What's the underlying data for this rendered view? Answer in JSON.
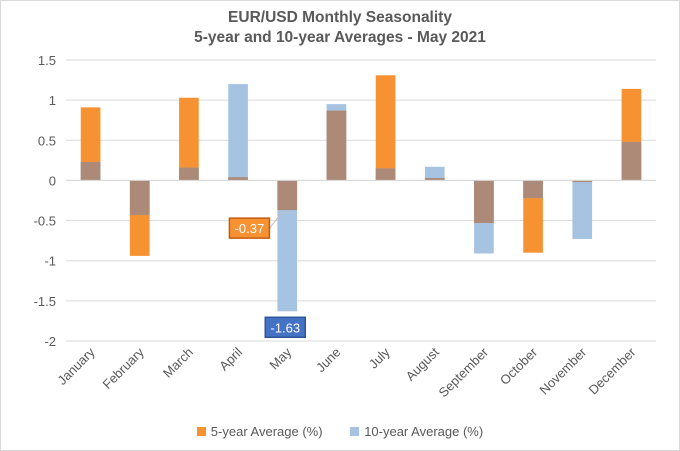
{
  "chart_data": {
    "type": "bar",
    "title": "EUR/USD Monthly Seasonality",
    "subtitle": "5-year and 10-year Averages - May 2021",
    "categories": [
      "January",
      "February",
      "March",
      "April",
      "May",
      "June",
      "July",
      "August",
      "September",
      "October",
      "November",
      "December"
    ],
    "series": [
      {
        "name": "5-year Average (%)",
        "color": "#F79232",
        "values": [
          0.91,
          -0.94,
          1.03,
          0.04,
          -0.37,
          0.87,
          1.31,
          0.03,
          -0.53,
          -0.9,
          -0.02,
          1.14
        ]
      },
      {
        "name": "10-year Average (%)",
        "color": "#A6C3E2",
        "values": [
          0.23,
          -0.43,
          0.16,
          1.2,
          -1.63,
          0.95,
          0.15,
          0.17,
          -0.91,
          -0.22,
          -0.73,
          0.48
        ]
      }
    ],
    "overlap_color": "#AC8A77",
    "ylim": [
      -2,
      1.5
    ],
    "yticks": [
      "1.5",
      "1",
      "0.5",
      "0",
      "-0.5",
      "-1",
      "-1.5",
      "-2"
    ],
    "ytick_values": [
      1.5,
      1,
      0.5,
      0,
      -0.5,
      -1,
      -1.5,
      -2
    ],
    "gridlines": true,
    "legend_position": "bottom",
    "annotations": [
      {
        "category": "May",
        "series": "5-year Average (%)",
        "text": "-0.37",
        "fill": "#F79232",
        "border": "#C55A11"
      },
      {
        "category": "May",
        "series": "10-year Average (%)",
        "text": "-1.63",
        "fill": "#4472C4",
        "border": "#2F5597"
      }
    ]
  }
}
